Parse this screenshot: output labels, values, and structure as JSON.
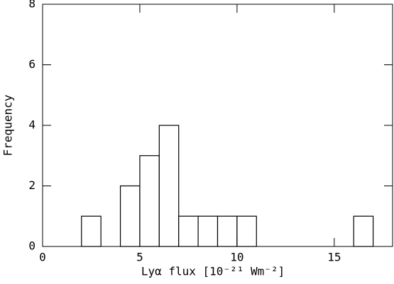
{
  "chart_data": {
    "type": "histogram",
    "x_label": "Lyα flux [10⁻²¹ Wm⁻²]",
    "y_label": "Frequency",
    "bins": [
      2,
      3,
      4,
      5,
      6,
      7,
      8,
      9,
      10,
      11,
      12,
      13,
      14,
      15,
      16,
      17
    ],
    "counts": [
      1,
      0,
      2,
      3,
      4,
      1,
      1,
      1,
      1,
      0,
      0,
      0,
      0,
      0,
      1
    ],
    "color": "#ffffff",
    "edge_color": "#000000",
    "xlim": [
      0,
      18
    ],
    "xticks": [
      0,
      5,
      10,
      15
    ],
    "ylim": [
      0,
      8
    ],
    "yticks": [
      0,
      2,
      4,
      6,
      8
    ]
  }
}
